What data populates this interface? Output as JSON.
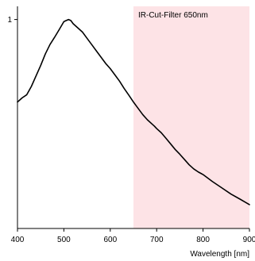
{
  "chart_data": {
    "type": "line",
    "xlabel": "Wavelength [nm]",
    "ylabel": "",
    "xlim": [
      400,
      900
    ],
    "ylim": [
      0,
      1
    ],
    "x_ticks": [
      {
        "value": 400,
        "label": "400"
      },
      {
        "value": 500,
        "label": "500"
      },
      {
        "value": 600,
        "label": "600"
      },
      {
        "value": 700,
        "label": "700"
      },
      {
        "value": 800,
        "label": "800"
      },
      {
        "value": 900,
        "label": "900"
      }
    ],
    "y_ticks": [
      {
        "value": 1,
        "label": "1"
      }
    ],
    "grid": false,
    "shaded_region": {
      "label": "IR-Cut-Filter 650nm",
      "x_start": 650,
      "x_end": 900,
      "color": "#fde3e6"
    },
    "series": [
      {
        "color": "#000000",
        "x": [
          400,
          410,
          420,
          430,
          440,
          450,
          460,
          470,
          480,
          490,
          500,
          505,
          510,
          515,
          520,
          530,
          540,
          550,
          560,
          570,
          580,
          590,
          600,
          610,
          620,
          630,
          640,
          650,
          660,
          670,
          680,
          690,
          695,
          700,
          710,
          720,
          730,
          740,
          750,
          760,
          770,
          780,
          790,
          800,
          820,
          840,
          860,
          880,
          900
        ],
        "y": [
          0.605,
          0.625,
          0.64,
          0.68,
          0.73,
          0.78,
          0.835,
          0.88,
          0.915,
          0.952,
          0.99,
          0.995,
          1.0,
          0.995,
          0.98,
          0.96,
          0.94,
          0.91,
          0.88,
          0.85,
          0.82,
          0.79,
          0.765,
          0.735,
          0.705,
          0.67,
          0.638,
          0.605,
          0.575,
          0.545,
          0.52,
          0.5,
          0.49,
          0.478,
          0.458,
          0.432,
          0.405,
          0.378,
          0.355,
          0.33,
          0.305,
          0.285,
          0.27,
          0.258,
          0.225,
          0.195,
          0.165,
          0.14,
          0.114
        ]
      }
    ]
  }
}
